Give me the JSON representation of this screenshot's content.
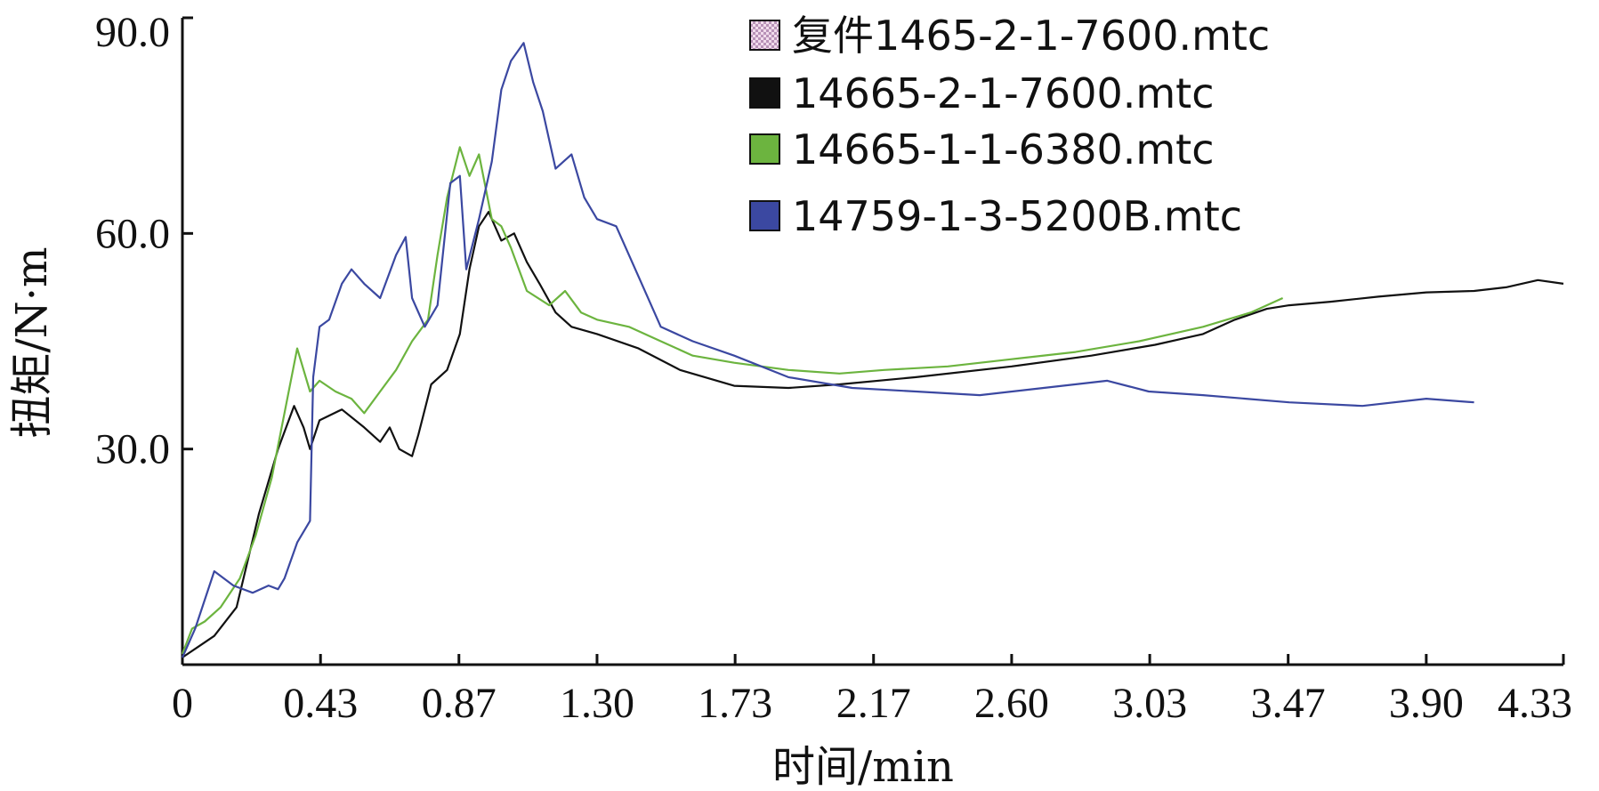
{
  "chart_data": {
    "type": "line",
    "title": "",
    "xlabel": "时间/min",
    "ylabel": "扭矩/N·m",
    "xlim": [
      0,
      4.33
    ],
    "ylim": [
      0,
      90
    ],
    "x_ticks": [
      "0",
      "0.43",
      "0.87",
      "1.30",
      "1.73",
      "2.17",
      "2.60",
      "3.03",
      "3.47",
      "3.90",
      "4.33"
    ],
    "x_tick_values": [
      0,
      0.433,
      0.867,
      1.3,
      1.733,
      2.167,
      2.6,
      3.033,
      3.467,
      3.9,
      4.33
    ],
    "y_ticks": [
      "30.0",
      "60.0",
      "90.0"
    ],
    "y_tick_values": [
      30,
      60,
      90
    ],
    "grid": false,
    "legend_position": "top-right",
    "series": [
      {
        "name": "复件1465-2-1-7600.mtc",
        "color": "#c9a8cc",
        "swatch": "checkered",
        "x": [],
        "y": []
      },
      {
        "name": "14665-2-1-7600.mtc",
        "color": "#111111",
        "swatch": "solid",
        "x": [
          0,
          0.05,
          0.1,
          0.17,
          0.24,
          0.3,
          0.35,
          0.38,
          0.4,
          0.43,
          0.5,
          0.57,
          0.62,
          0.65,
          0.68,
          0.72,
          0.74,
          0.78,
          0.83,
          0.87,
          0.9,
          0.93,
          0.96,
          1.0,
          1.04,
          1.08,
          1.12,
          1.17,
          1.22,
          1.3,
          1.43,
          1.56,
          1.73,
          1.9,
          2.06,
          2.3,
          2.6,
          2.85,
          3.05,
          3.2,
          3.3,
          3.4,
          3.47,
          3.6,
          3.75,
          3.9,
          4.05,
          4.15,
          4.25,
          4.33
        ],
        "y": [
          1,
          2.5,
          4,
          8,
          21,
          30,
          36,
          33,
          30,
          34,
          35.5,
          33,
          31,
          33,
          30,
          29,
          32,
          39,
          41,
          46,
          55,
          61,
          63,
          59,
          60,
          56,
          53,
          49,
          47,
          46,
          44,
          41,
          38.8,
          38.5,
          39,
          40,
          41.5,
          43,
          44.5,
          46,
          48,
          49.5,
          50,
          50.5,
          51.2,
          51.8,
          52,
          52.5,
          53.5,
          53
        ]
      },
      {
        "name": "14665-1-1-6380.mtc",
        "color": "#6cb43f",
        "swatch": "solid",
        "x": [
          0,
          0.03,
          0.07,
          0.12,
          0.18,
          0.23,
          0.28,
          0.32,
          0.36,
          0.38,
          0.4,
          0.43,
          0.48,
          0.53,
          0.57,
          0.62,
          0.67,
          0.72,
          0.77,
          0.8,
          0.83,
          0.87,
          0.9,
          0.93,
          0.97,
          1.0,
          1.03,
          1.08,
          1.15,
          1.2,
          1.25,
          1.3,
          1.4,
          1.5,
          1.6,
          1.73,
          1.9,
          2.06,
          2.2,
          2.4,
          2.6,
          2.8,
          3.0,
          3.2,
          3.35,
          3.45
        ],
        "y": [
          1.5,
          5,
          6,
          8,
          12,
          18,
          26,
          35,
          44,
          41,
          38,
          39.5,
          38,
          37,
          35,
          38,
          41,
          45,
          48,
          57,
          65,
          72,
          68,
          71,
          62,
          61,
          58,
          52,
          50,
          52,
          49,
          48,
          47,
          45,
          43,
          42,
          41,
          40.5,
          41,
          41.5,
          42.5,
          43.5,
          45,
          47,
          49,
          51
        ]
      },
      {
        "name": "14759-1-3-5200B.mtc",
        "color": "#3b48a1",
        "swatch": "solid",
        "x": [
          0,
          0.04,
          0.1,
          0.16,
          0.22,
          0.27,
          0.3,
          0.32,
          0.36,
          0.4,
          0.41,
          0.43,
          0.46,
          0.5,
          0.53,
          0.57,
          0.62,
          0.67,
          0.7,
          0.72,
          0.76,
          0.8,
          0.84,
          0.87,
          0.89,
          0.93,
          0.97,
          1.0,
          1.03,
          1.07,
          1.1,
          1.13,
          1.17,
          1.22,
          1.26,
          1.3,
          1.36,
          1.43,
          1.5,
          1.6,
          1.73,
          1.9,
          2.1,
          2.3,
          2.5,
          2.7,
          2.9,
          3.03,
          3.2,
          3.47,
          3.7,
          3.9,
          4.05
        ],
        "y": [
          1,
          5,
          13,
          11,
          10,
          11,
          10.5,
          12,
          17,
          20,
          40,
          47,
          48,
          53,
          55,
          53,
          51,
          57,
          59.5,
          51,
          47,
          50,
          67,
          68,
          55,
          62,
          70,
          80,
          84,
          86.5,
          81,
          77,
          69,
          71,
          65,
          62,
          61,
          54,
          47,
          45,
          43,
          40,
          38.5,
          38,
          37.5,
          38.5,
          39.5,
          38,
          37.5,
          36.5,
          36,
          37,
          36.5
        ]
      }
    ]
  }
}
